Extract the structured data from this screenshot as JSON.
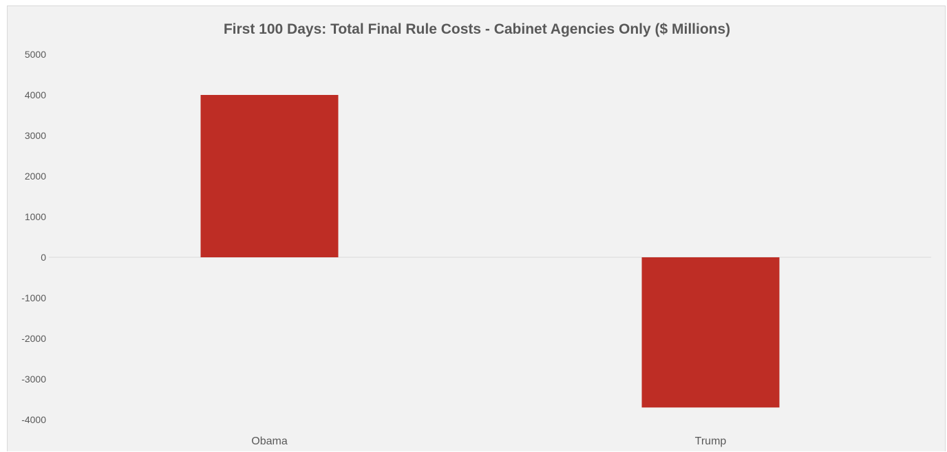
{
  "chart_data": {
    "type": "bar",
    "title": "First 100 Days: Total Final Rule Costs - Cabinet Agencies Only ($ Millions)",
    "xlabel": "",
    "ylabel": "",
    "categories": [
      "Obama",
      "Trump"
    ],
    "values": [
      4000,
      -3700
    ],
    "ylim": [
      -4000,
      5000
    ],
    "yticks": [
      5000,
      4000,
      3000,
      2000,
      1000,
      0,
      -1000,
      -2000,
      -3000,
      -4000
    ],
    "bar_color": "#be2d25",
    "background_color": "#f2f2f2",
    "grid": false,
    "legend": "none"
  }
}
